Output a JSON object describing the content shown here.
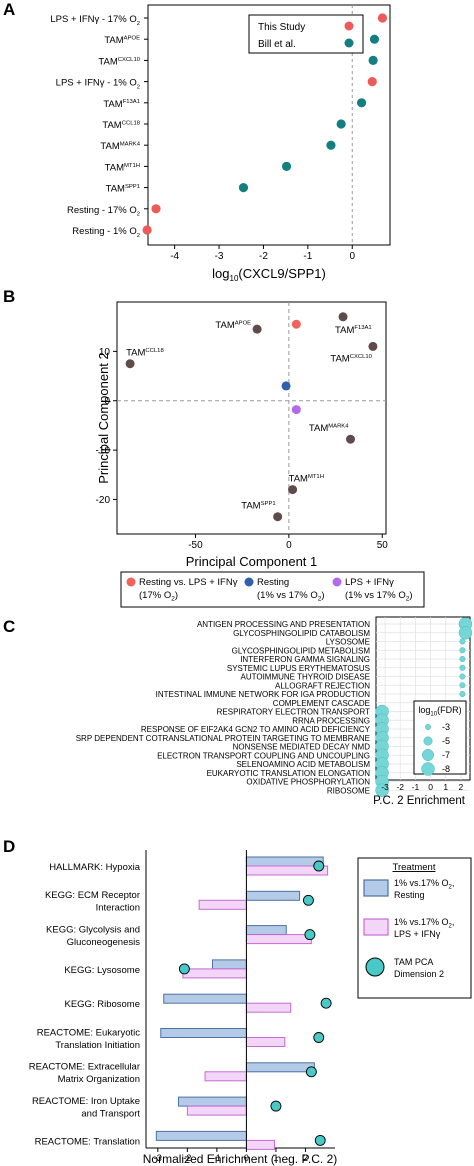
{
  "panel_labels": {
    "a": "A",
    "b": "B",
    "c": "C",
    "d": "D"
  },
  "colors": {
    "this_study": "#ee5a5a",
    "bill": "#147f80",
    "tam": "#5f4a4c",
    "resting_vs_lps": "#f0625a",
    "resting_pc": "#2f5fae",
    "lps_pc": "#b469ec",
    "fdr_dot": "#74d6d6",
    "fdr_dot_stroke": "#52bcbc",
    "resting_bar": "#b4cae6",
    "resting_bar_stroke": "#4a72a4",
    "lps_bar": "#f3d6f7",
    "lps_bar_stroke": "#c56ad6",
    "pca_dot": "#48c9c7"
  },
  "chart_data": [
    {
      "type": "scatter",
      "panel": "A",
      "xlabel": "log10(CXCL9/SPP1)",
      "xlim": [
        -4.6,
        0.85
      ],
      "xticks": [
        "-4",
        "-3",
        "-2",
        "-1",
        "0"
      ],
      "legend": {
        "position": "top-right",
        "entries": [
          "This Study",
          "Bill et al."
        ]
      },
      "categories": [
        {
          "label": "LPS + IFNγ - 17% O",
          "sub": "2",
          "sup": "",
          "x": 0.68,
          "group": "this_study"
        },
        {
          "label": "TAM",
          "sub": "",
          "sup": "APOE",
          "x": 0.5,
          "group": "bill"
        },
        {
          "label": "TAM",
          "sub": "",
          "sup": "CXCL10",
          "x": 0.47,
          "group": "bill"
        },
        {
          "label": "LPS + IFNγ - 1% O",
          "sub": "2",
          "sup": "",
          "x": 0.45,
          "group": "this_study"
        },
        {
          "label": "TAM",
          "sub": "",
          "sup": "F13A1",
          "x": 0.21,
          "group": "bill"
        },
        {
          "label": "TAM",
          "sub": "",
          "sup": "CCL18",
          "x": -0.25,
          "group": "bill"
        },
        {
          "label": "TAM",
          "sub": "",
          "sup": "MARK4",
          "x": -0.48,
          "group": "bill"
        },
        {
          "label": "TAM",
          "sub": "",
          "sup": "MT1H",
          "x": -1.48,
          "group": "bill"
        },
        {
          "label": "TAM",
          "sub": "",
          "sup": "SPP1",
          "x": -2.45,
          "group": "bill"
        },
        {
          "label": "Resting - 17% O",
          "sub": "2",
          "sup": "",
          "x": -4.42,
          "group": "this_study"
        },
        {
          "label": "Resting - 1% O",
          "sub": "2",
          "sup": "",
          "x": -4.62,
          "group": "this_study"
        }
      ]
    },
    {
      "type": "scatter",
      "panel": "B",
      "xlabel": "Principal Component 1",
      "ylabel": "Principal Component 2",
      "xlim": [
        -92,
        52
      ],
      "ylim": [
        -27,
        20
      ],
      "xticks": [
        -50,
        0,
        50
      ],
      "yticks": [
        10,
        0,
        -10,
        -20
      ],
      "points": [
        {
          "label": "TAM",
          "sup": "CCL18",
          "x": -85,
          "y": 7.5,
          "group": "tam",
          "label_pos": "above-right"
        },
        {
          "label": "TAM",
          "sup": "APOE",
          "x": -17,
          "y": 14.5,
          "group": "tam",
          "label_pos": "left"
        },
        {
          "label": "TAM",
          "sup": "F13A1",
          "x": 29,
          "y": 17,
          "group": "tam",
          "label_pos": "below"
        },
        {
          "label": "TAM",
          "sup": "CXCL10",
          "x": 45,
          "y": 11,
          "group": "tam",
          "label_pos": "below-left"
        },
        {
          "label": "TAM",
          "sup": "MARK4",
          "x": 33,
          "y": -7.8,
          "group": "tam",
          "label_pos": "above-left"
        },
        {
          "label": "TAM",
          "sup": "MT1H",
          "x": 2,
          "y": -18,
          "group": "tam",
          "label_pos": "above-right"
        },
        {
          "label": "TAM",
          "sup": "SPP1",
          "x": -6,
          "y": -23.5,
          "group": "tam",
          "label_pos": "above-left"
        },
        {
          "label": "",
          "sup": "",
          "x": 4,
          "y": 15.5,
          "group": "resting_vs_lps"
        },
        {
          "label": "",
          "sup": "",
          "x": -1.5,
          "y": 3,
          "group": "resting_pc"
        },
        {
          "label": "",
          "sup": "",
          "x": 4,
          "y": -1.8,
          "group": "lps_pc"
        }
      ],
      "legend": {
        "position": "bottom",
        "entries": [
          {
            "line1": "Resting vs. LPS + IFNγ",
            "line2": "(17% O",
            "sub": "2",
            "tail": ")",
            "group": "resting_vs_lps"
          },
          {
            "line1": "Resting",
            "line2": "(1% vs 17% O",
            "sub": "2",
            "tail": ")",
            "group": "resting_pc"
          },
          {
            "line1": "LPS + IFNγ",
            "line2": "(1% vs 17% O",
            "sub": "2",
            "tail": ")",
            "group": "lps_pc"
          }
        ]
      }
    },
    {
      "type": "scatter",
      "panel": "C",
      "xlabel": "P.C. 2 Enrichment",
      "xticks": [
        -3,
        -2,
        -1,
        0,
        1,
        2
      ],
      "xlim": [
        -3.6,
        2.6
      ],
      "categories": [
        {
          "label": "ANTIGEN PROCESSING AND PRESENTATION",
          "x": 2.3,
          "log10_fdr": -8
        },
        {
          "label": "GLYCOSPHINGOLIPID CATABOLISM",
          "x": 2.3,
          "log10_fdr": -8
        },
        {
          "label": "LYSOSOME",
          "x": 2.1,
          "log10_fdr": -3
        },
        {
          "label": "GLYCOSPHINGOLIPID METABOLISM",
          "x": 2.1,
          "log10_fdr": -3
        },
        {
          "label": "INTERFERON GAMMA SIGNALING",
          "x": 2.1,
          "log10_fdr": -3
        },
        {
          "label": "SYSTEMIC LUPUS ERYTHEMATOSUS",
          "x": 2.1,
          "log10_fdr": -3
        },
        {
          "label": "AUTOIMMUNE THYROID DISEASE",
          "x": 2.1,
          "log10_fdr": -3
        },
        {
          "label": "ALLOGRAFT REJECTION",
          "x": 2.1,
          "log10_fdr": -3
        },
        {
          "label": "INTESTINAL IMMUNE NETWORK FOR IGA PRODUCTION",
          "x": 2.1,
          "log10_fdr": -3
        },
        {
          "label": "COMPLEMENT CASCADE",
          "x": 2.0,
          "log10_fdr": -2
        },
        {
          "label": "RESPIRATORY ELECTRON TRANSPORT",
          "x": -3.2,
          "log10_fdr": -8
        },
        {
          "label": "RRNA PROCESSING",
          "x": -3.2,
          "log10_fdr": -8
        },
        {
          "label": "RESPONSE OF EIF2AK4 GCN2 TO AMINO ACID DEFICIENCY",
          "x": -3.2,
          "log10_fdr": -8
        },
        {
          "label": "SRP DEPENDENT COTRANSLATIONAL PROTEIN TARGETING TO MEMBRANE",
          "x": -3.2,
          "log10_fdr": -8
        },
        {
          "label": "NONSENSE MEDIATED DECAY NMD",
          "x": -3.2,
          "log10_fdr": -8
        },
        {
          "label": "ELECTRON TRANSPORT COUPLING AND UNCOUPLING",
          "x": -3.2,
          "log10_fdr": -8
        },
        {
          "label": "SELENOAMINO ACID METABOLISM",
          "x": -3.2,
          "log10_fdr": -8
        },
        {
          "label": "EUKARYOTIC TRANSLATION ELONGATION",
          "x": -3.2,
          "log10_fdr": -8
        },
        {
          "label": "OXIDATIVE PHOSPHORYLATION",
          "x": -3.2,
          "log10_fdr": -8
        },
        {
          "label": "RIBOSOME",
          "x": -3.2,
          "log10_fdr": -8
        }
      ],
      "legend": {
        "position": "bottom-right",
        "title": "log",
        "title_sub": "10",
        "title_tail": "(FDR)",
        "entries": [
          "-3",
          "-5",
          "-7",
          "-8"
        ],
        "sizes": [
          -3,
          -5,
          -7,
          -8
        ]
      }
    },
    {
      "type": "bar",
      "panel": "D",
      "xlabel": "Normalized Enrichment (neg. P.C. 2)",
      "xlim": [
        -3.4,
        3.0
      ],
      "xticks": [
        -3,
        -2,
        -1,
        0,
        1,
        2
      ],
      "categories": [
        {
          "lines": [
            "HALLMARK: Hypoxia"
          ],
          "resting": 2.6,
          "lps": 2.75,
          "pca": 2.45
        },
        {
          "lines": [
            "KEGG: ECM Receptor",
            "Interaction"
          ],
          "resting": 1.8,
          "lps": -1.6,
          "pca": 2.1
        },
        {
          "lines": [
            "KEGG: Glycolysis and",
            "Gluconeogenesis"
          ],
          "resting": 1.35,
          "lps": 2.2,
          "pca": 2.15
        },
        {
          "lines": [
            "KEGG: Lysosome"
          ],
          "resting": -1.15,
          "lps": -2.15,
          "pca": -2.1
        },
        {
          "lines": [
            "KEGG: Ribosome"
          ],
          "resting": -2.8,
          "lps": 1.5,
          "pca": 2.7
        },
        {
          "lines": [
            "REACTOME: Eukaryotic",
            "Translation Initiation"
          ],
          "resting": -2.9,
          "lps": 1.3,
          "pca": 2.45
        },
        {
          "lines": [
            "REACTOME: Extracellular",
            "Matrix Organization"
          ],
          "resting": 2.3,
          "lps": -1.4,
          "pca": 2.2
        },
        {
          "lines": [
            "REACTOME: Iron Uptake",
            "and Transport"
          ],
          "resting": -2.3,
          "lps": -2.0,
          "pca": 1.0
        },
        {
          "lines": [
            "REACTOME: Translation"
          ],
          "resting": -3.05,
          "lps": 0.95,
          "pca": 2.5
        }
      ],
      "legend": {
        "position": "right",
        "title": "Treatment",
        "entries": [
          {
            "key": "resting",
            "line1": "1% vs.17% O",
            "sub": "2",
            "tail": ",",
            "line2": "Resting"
          },
          {
            "key": "lps",
            "line1": "1% vs.17% O",
            "sub": "2",
            "tail": ",",
            "line2": "LPS + IFNγ"
          },
          {
            "key": "pca",
            "line1": "TAM PCA",
            "sub": "",
            "tail": "",
            "line2": "Dimension 2"
          }
        ]
      }
    }
  ]
}
